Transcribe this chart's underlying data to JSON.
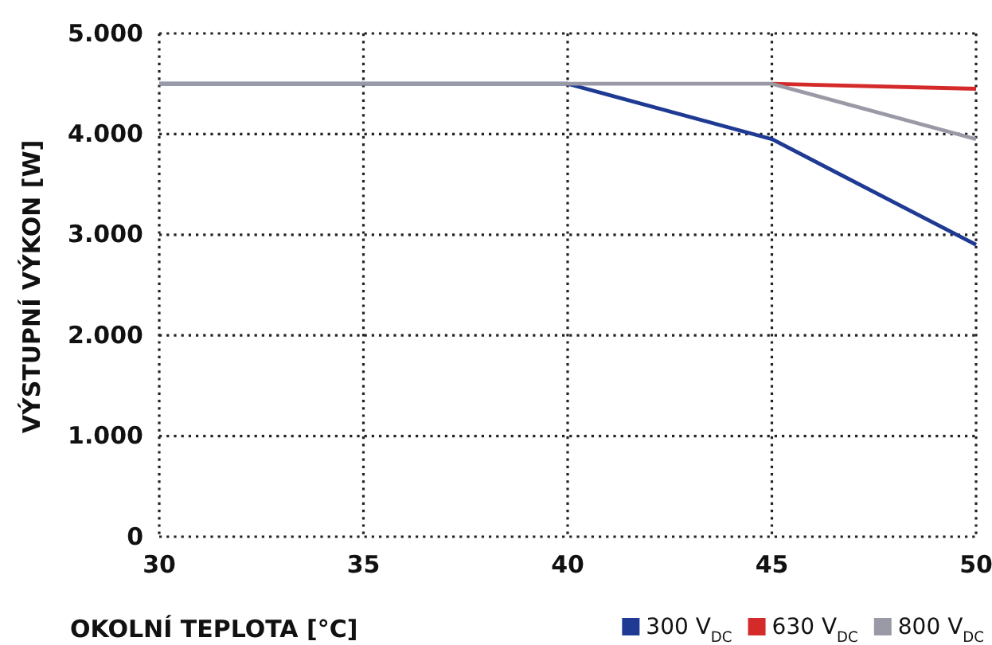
{
  "chart_data": {
    "type": "line",
    "xlabel": "OKOLNÍ TEPLOTA [°C]",
    "ylabel": "VÝSTUPNÍ VÝKON [W]",
    "x": [
      30,
      35,
      40,
      45,
      50
    ],
    "xlim": [
      30,
      50
    ],
    "xticks": [
      30,
      35,
      40,
      45,
      50
    ],
    "ylim": [
      0,
      5000
    ],
    "yticks": [
      {
        "value": 0,
        "label": "0"
      },
      {
        "value": 1000,
        "label": "1.000"
      },
      {
        "value": 2000,
        "label": "2.000"
      },
      {
        "value": 3000,
        "label": "3.000"
      },
      {
        "value": 4000,
        "label": "4.000"
      },
      {
        "value": 5000,
        "label": "5.000"
      }
    ],
    "grid": true,
    "legend": "bottom right",
    "line_style": "solid",
    "marker": "none",
    "series": [
      {
        "name": "300 V$_{DC}$",
        "color": "#1f3a93",
        "values": [
          4500,
          4500,
          4500,
          3950,
          2900
        ]
      },
      {
        "name": "630 V$_{DC}$",
        "color": "#d42a2a",
        "values": [
          null,
          null,
          null,
          4500,
          4450
        ]
      },
      {
        "name": "800 V$_{DC}$",
        "color": "#9a9aa6",
        "values": [
          4500,
          4500,
          4500,
          4500,
          3950
        ]
      }
    ]
  }
}
